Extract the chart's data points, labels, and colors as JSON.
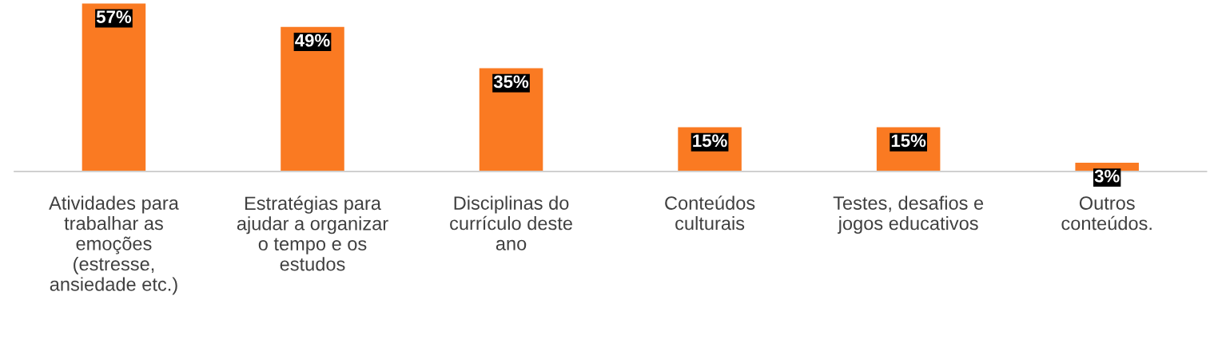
{
  "chart_data": {
    "type": "bar",
    "categories": [
      "Atividades para\ntrabalhar as\nemoções\n(estresse,\nansiedade etc.)",
      "Estratégias para\najudar a organizar\no tempo e os\nestudos",
      "Disciplinas do\ncurrículo deste\nano",
      "Conteúdos\nculturais",
      "Testes, desafios e\njogos educativos",
      "Outros\nconteúdos."
    ],
    "values": [
      57,
      49,
      35,
      15,
      15,
      3
    ],
    "color": "#fa7a22",
    "data_labels": true,
    "value_labels": [
      "57%",
      "49%",
      "35%",
      "15%",
      "15%",
      "3%"
    ],
    "grid": false,
    "legend": false
  }
}
